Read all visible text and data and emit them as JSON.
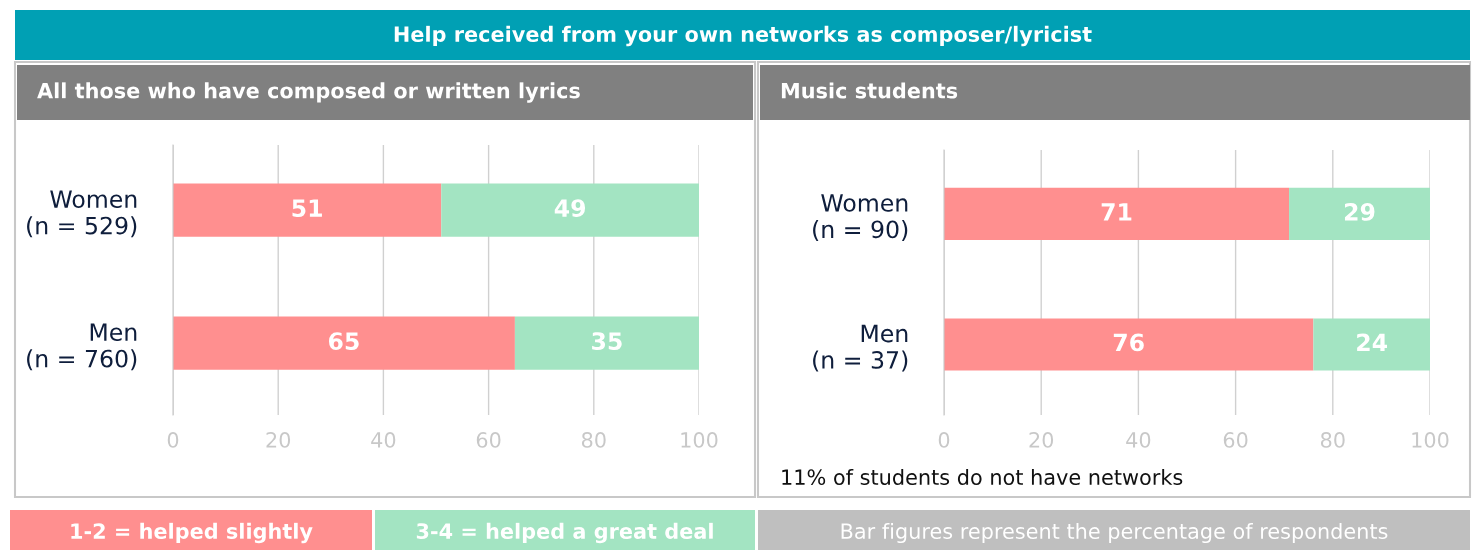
{
  "chart_data": [
    {
      "type": "bar",
      "orientation": "horizontal",
      "stacked": true,
      "title": "Help received from your own networks as composer/lyricist",
      "subtitle": "All those who have composed or written lyrics",
      "categories": [
        "Women\n(n = 529)",
        "Men\n(n = 760)"
      ],
      "series": [
        {
          "name": "1-2 = helped slightly",
          "color": "#ff8f8f",
          "values": [
            51,
            65
          ]
        },
        {
          "name": "3-4 = helped a great deal",
          "color": "#a3e4c2",
          "values": [
            49,
            35
          ]
        }
      ],
      "xlim": [
        0,
        100
      ],
      "xticks": [
        0,
        20,
        40,
        60,
        80,
        100
      ],
      "grid": "x",
      "data_labels": true,
      "legend": "bottom"
    },
    {
      "type": "bar",
      "orientation": "horizontal",
      "stacked": true,
      "subtitle": "Music students",
      "categories": [
        "Women\n(n = 90)",
        "Men\n(n = 37)"
      ],
      "series": [
        {
          "color": "#ff8f8f",
          "values": [
            71,
            76
          ]
        },
        {
          "color": "#a3e4c2",
          "values": [
            29,
            24
          ]
        }
      ],
      "xlim": [
        0,
        100
      ],
      "xticks": [
        0,
        20,
        40,
        60,
        80,
        100
      ],
      "grid": "x",
      "data_labels": true,
      "annotations": [
        "11% of students do not have networks",
        "Bar figures represent the percentage of respondents"
      ]
    }
  ]
}
